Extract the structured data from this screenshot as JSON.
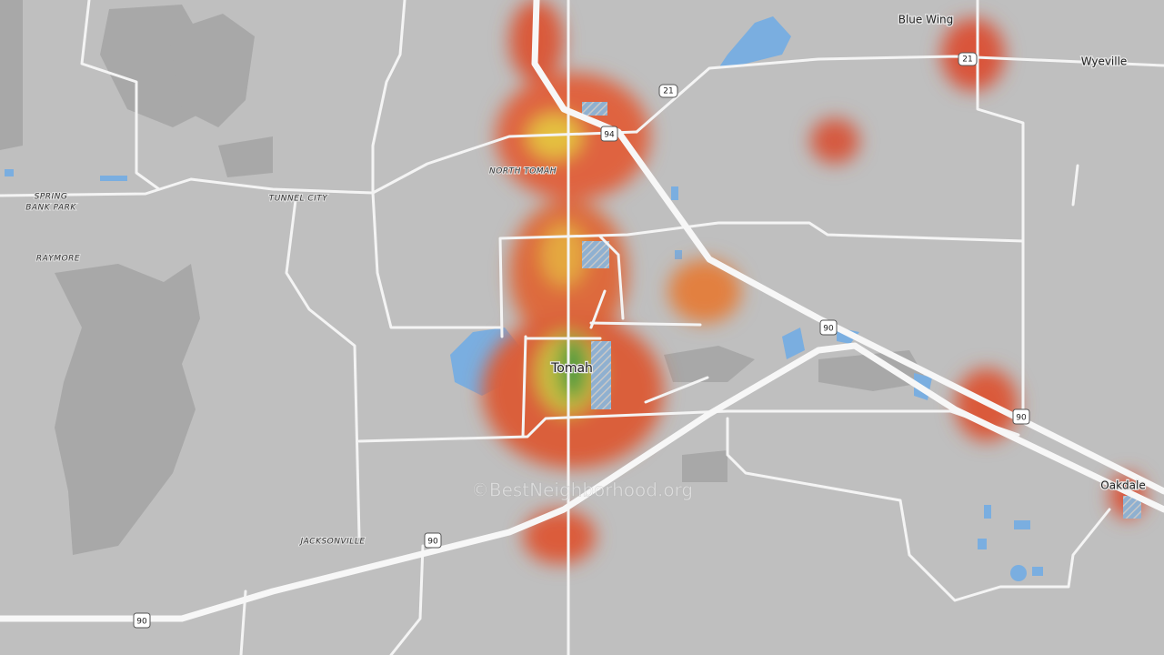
{
  "places": {
    "blue_wing": "Blue Wing",
    "wyeville": "Wyeville",
    "spring_bank_park": [
      "SPRING",
      "BANK PARK"
    ],
    "tunnel_city": "TUNNEL CITY",
    "raymore": "RAYMORE",
    "north_tomah": "NORTH TOMAH",
    "tomah": "Tomah",
    "jacksonville": "JACKSONVILLE",
    "oakdale": "Oakdale"
  },
  "shields": [
    "21",
    "21",
    "94",
    "90",
    "90",
    "90",
    "90"
  ],
  "watermark": "©BestNeighborhood.org"
}
